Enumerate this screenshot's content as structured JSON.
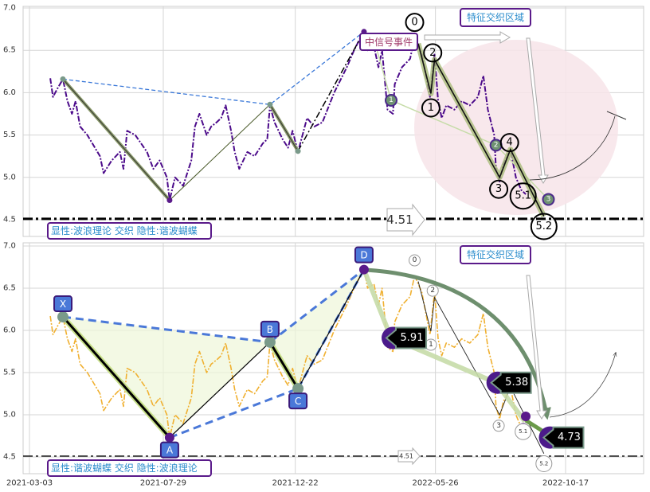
{
  "chart_data": {
    "type": "line",
    "x_unit": "days since 2021-03-03",
    "xlim": [
      -7,
      680
    ],
    "ylim": [
      4.3,
      7.02
    ],
    "grid": true,
    "x_ticks": [
      {
        "day": 0,
        "label": "2021-03-03"
      },
      {
        "day": 148,
        "label": "2021-07-29"
      },
      {
        "day": 294,
        "label": "2021-12-22"
      },
      {
        "day": 449,
        "label": "2022-05-26"
      },
      {
        "day": 593,
        "label": "2022-10-17"
      }
    ],
    "y_ticks": [
      "4.5",
      "5.0",
      "5.5",
      "6.0",
      "6.5",
      "7.0"
    ],
    "price": {
      "days": [
        23,
        26,
        31,
        37,
        42,
        47,
        51,
        56,
        64,
        78,
        82,
        91,
        100,
        104,
        108,
        117,
        130,
        137,
        144,
        148,
        152,
        155,
        161,
        170,
        179,
        183,
        188,
        196,
        201,
        207,
        212,
        217,
        223,
        227,
        232,
        241,
        249,
        258,
        263,
        266,
        271,
        280,
        286,
        291,
        297,
        307,
        315,
        324,
        337,
        351,
        359,
        370,
        374,
        381,
        386,
        390,
        396,
        402,
        404,
        412,
        421,
        426,
        434,
        443,
        448,
        452,
        456,
        461,
        470,
        478,
        487,
        496,
        502,
        507,
        514,
        516,
        520,
        524,
        532,
        538,
        544,
        549
      ],
      "values": [
        6.17,
        5.95,
        6.05,
        6.16,
        5.9,
        5.75,
        5.9,
        5.6,
        5.5,
        5.25,
        5.05,
        5.2,
        5.3,
        5.1,
        5.55,
        5.5,
        5.3,
        5.1,
        5.2,
        5.1,
        5.0,
        4.73,
        5.0,
        4.9,
        5.2,
        5.6,
        5.75,
        5.5,
        5.6,
        5.65,
        5.7,
        5.85,
        5.55,
        5.3,
        5.1,
        5.3,
        5.25,
        5.4,
        5.45,
        5.85,
        5.65,
        5.45,
        5.35,
        5.55,
        5.3,
        5.7,
        5.6,
        5.65,
        6.0,
        6.3,
        6.5,
        6.73,
        6.5,
        6.55,
        6.3,
        6.5,
        5.8,
        5.75,
        6.1,
        6.3,
        6.4,
        6.65,
        6.45,
        5.95,
        6.45,
        5.9,
        5.7,
        5.85,
        5.8,
        5.9,
        5.85,
        5.95,
        6.2,
        5.8,
        5.5,
        5.1,
        4.95,
        5.15,
        5.33,
        5.0,
        4.85,
        4.8
      ]
    },
    "harmonic_points": [
      {
        "label": "X",
        "day": 37,
        "value": 6.16
      },
      {
        "label": "A",
        "day": 155,
        "value": 4.73
      },
      {
        "label": "B",
        "day": 266,
        "value": 5.86
      },
      {
        "label": "C",
        "day": 297,
        "value": 5.31
      },
      {
        "label": "D",
        "day": 370,
        "value": 6.72
      }
    ],
    "wave_points": [
      {
        "label": "0",
        "day": 430,
        "value": 6.58
      },
      {
        "label": "1",
        "day": 444,
        "value": 5.99
      },
      {
        "label": "2",
        "day": 448,
        "value": 6.39
      },
      {
        "label": "3",
        "day": 520,
        "value": 5.0
      },
      {
        "label": "4",
        "day": 532,
        "value": 5.33
      },
      {
        "label": "5.2",
        "day": 569,
        "value": 4.54
      }
    ],
    "support_level": {
      "value": 4.51,
      "label": "4.51"
    },
    "panels": [
      {
        "name": "top",
        "series_color": "#4b0a8a",
        "legend": "显性:波浪理论 交织 隐性:谐波蝴蝶",
        "zone_label": "特征交织区域",
        "event_label": "中信号事件",
        "wave_labels": [
          {
            "label": "0",
            "day": 426,
            "value": 6.83
          },
          {
            "label": "2",
            "day": 446,
            "value": 6.47
          },
          {
            "label": "1",
            "day": 444,
            "value": 5.82
          },
          {
            "label": "4",
            "day": 531,
            "value": 5.41
          },
          {
            "label": "3",
            "day": 519,
            "value": 4.86
          },
          {
            "label": "5.1",
            "day": 546,
            "value": 4.78
          },
          {
            "label": "5.2",
            "day": 569,
            "value": 4.42
          }
        ],
        "markers": [
          {
            "label": "1",
            "day": 400,
            "value": 5.91
          },
          {
            "label": "2",
            "day": 516,
            "value": 5.38
          },
          {
            "label": "3",
            "day": 574,
            "value": 4.74
          }
        ]
      },
      {
        "name": "bottom",
        "series_color": "#f0b030",
        "legend": "显性:谐波蝴蝶 交织 隐性:波浪理论",
        "zone_label": "特征交织区域",
        "wave_labels": [
          {
            "label": "0",
            "day": 426,
            "value": 6.83
          },
          {
            "label": "2",
            "day": 446,
            "value": 6.47
          },
          {
            "label": "1",
            "day": 444,
            "value": 5.83
          },
          {
            "label": "3",
            "day": 519,
            "value": 4.87
          },
          {
            "label": "5.1",
            "day": 546,
            "value": 4.8
          },
          {
            "label": "5.2",
            "day": 569,
            "value": 4.42
          }
        ],
        "price_tags": [
          {
            "label": "5.91",
            "day": 400,
            "value": 5.91
          },
          {
            "label": "5.38",
            "day": 516,
            "value": 5.38
          },
          {
            "label": "4.73",
            "day": 574,
            "value": 4.73
          }
        ]
      }
    ]
  }
}
